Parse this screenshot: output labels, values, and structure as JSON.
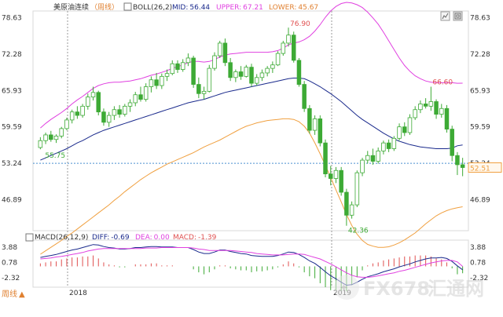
{
  "chart_data": {
    "type": "candlestick",
    "instrument": "美原油连续",
    "period_tag": "周线",
    "indicator": {
      "name": "BOLL(26,2)",
      "mid_label": "MID:",
      "mid_value": "56.44",
      "upper_label": "UPPER:",
      "upper_value": "67.21",
      "lower_label": "LOWER:",
      "lower_value": "45.67"
    },
    "price_axis": {
      "ticks": [
        "78.63",
        "72.28",
        "65.93",
        "59.59",
        "53.24",
        "46.89"
      ],
      "ylim": [
        41.5,
        79.8
      ]
    },
    "current_price": "52.51",
    "annotations": {
      "high": "76.90",
      "low": "42.36",
      "left_low": "55.75",
      "right_high": "66.60"
    },
    "x_labels": [
      "2018",
      "2019"
    ],
    "candles": [
      [
        56.0,
        57.8,
        55.7,
        57.2
      ],
      [
        57.2,
        58.6,
        56.6,
        58.2
      ],
      [
        58.2,
        58.9,
        57.0,
        57.4
      ],
      [
        57.4,
        58.3,
        56.8,
        58.0
      ],
      [
        58.0,
        59.6,
        57.6,
        59.3
      ],
      [
        59.3,
        61.2,
        59.0,
        60.8
      ],
      [
        60.8,
        62.6,
        60.2,
        62.2
      ],
      [
        62.2,
        63.2,
        61.0,
        61.6
      ],
      [
        61.6,
        63.6,
        61.2,
        63.2
      ],
      [
        63.2,
        65.4,
        62.6,
        64.8
      ],
      [
        64.8,
        66.6,
        64.2,
        65.6
      ],
      [
        65.6,
        65.9,
        61.6,
        62.2
      ],
      [
        62.2,
        62.8,
        59.8,
        60.4
      ],
      [
        60.4,
        62.2,
        59.6,
        61.6
      ],
      [
        61.6,
        63.2,
        60.8,
        62.6
      ],
      [
        62.6,
        63.4,
        61.2,
        61.8
      ],
      [
        61.8,
        63.6,
        61.4,
        63.2
      ],
      [
        63.2,
        64.4,
        62.2,
        63.8
      ],
      [
        63.8,
        65.7,
        63.2,
        65.2
      ],
      [
        65.2,
        66.6,
        64.0,
        64.4
      ],
      [
        64.4,
        67.2,
        64.0,
        66.6
      ],
      [
        66.6,
        68.4,
        65.6,
        67.8
      ],
      [
        67.8,
        69.0,
        66.2,
        66.8
      ],
      [
        66.8,
        68.9,
        66.2,
        68.4
      ],
      [
        68.4,
        69.6,
        67.6,
        68.9
      ],
      [
        68.9,
        71.2,
        68.6,
        70.6
      ],
      [
        70.6,
        71.2,
        69.0,
        69.6
      ],
      [
        69.6,
        71.4,
        69.2,
        70.8
      ],
      [
        70.8,
        72.4,
        70.2,
        71.6
      ],
      [
        71.6,
        72.0,
        66.4,
        67.0
      ],
      [
        67.0,
        68.2,
        64.6,
        65.4
      ],
      [
        65.4,
        66.6,
        64.4,
        65.8
      ],
      [
        65.8,
        70.4,
        65.6,
        69.8
      ],
      [
        69.8,
        72.6,
        69.4,
        72.0
      ],
      [
        72.0,
        74.6,
        71.6,
        74.2
      ],
      [
        74.2,
        75.0,
        70.2,
        70.8
      ],
      [
        70.8,
        71.6,
        67.6,
        68.2
      ],
      [
        68.2,
        69.6,
        67.4,
        69.2
      ],
      [
        69.2,
        70.2,
        67.8,
        68.4
      ],
      [
        68.4,
        70.4,
        68.2,
        70.0
      ],
      [
        70.0,
        70.6,
        66.6,
        67.2
      ],
      [
        67.2,
        68.8,
        66.8,
        68.2
      ],
      [
        68.2,
        69.6,
        67.6,
        69.0
      ],
      [
        69.0,
        70.2,
        68.4,
        69.8
      ],
      [
        69.8,
        71.0,
        69.0,
        70.4
      ],
      [
        70.4,
        72.8,
        70.2,
        72.4
      ],
      [
        72.4,
        74.6,
        72.0,
        74.2
      ],
      [
        74.2,
        76.9,
        73.6,
        75.6
      ],
      [
        75.6,
        76.2,
        70.8,
        71.2
      ],
      [
        71.2,
        71.6,
        66.6,
        67.0
      ],
      [
        67.0,
        67.6,
        62.2,
        62.8
      ],
      [
        62.8,
        63.4,
        58.4,
        59.0
      ],
      [
        59.0,
        61.6,
        58.2,
        61.0
      ],
      [
        61.0,
        61.6,
        56.2,
        56.8
      ],
      [
        56.8,
        57.4,
        50.8,
        51.4
      ],
      [
        51.4,
        52.8,
        49.4,
        50.6
      ],
      [
        50.6,
        52.6,
        49.8,
        52.0
      ],
      [
        52.0,
        52.6,
        47.6,
        48.2
      ],
      [
        48.2,
        48.8,
        42.36,
        44.2
      ],
      [
        44.2,
        46.6,
        43.6,
        46.0
      ],
      [
        46.0,
        52.0,
        45.6,
        51.6
      ],
      [
        51.6,
        54.2,
        51.0,
        53.8
      ],
      [
        53.8,
        55.4,
        53.2,
        54.6
      ],
      [
        54.6,
        55.8,
        53.0,
        53.6
      ],
      [
        53.6,
        56.0,
        53.2,
        55.4
      ],
      [
        55.4,
        57.2,
        54.8,
        56.8
      ],
      [
        56.8,
        57.4,
        55.2,
        55.8
      ],
      [
        55.8,
        58.0,
        55.4,
        57.6
      ],
      [
        57.6,
        60.2,
        57.2,
        59.6
      ],
      [
        59.6,
        60.4,
        58.0,
        58.6
      ],
      [
        58.6,
        61.8,
        58.2,
        61.2
      ],
      [
        61.2,
        63.2,
        60.8,
        62.6
      ],
      [
        62.6,
        64.2,
        62.0,
        63.6
      ],
      [
        63.6,
        64.6,
        62.8,
        63.2
      ],
      [
        63.2,
        66.6,
        62.4,
        64.0
      ],
      [
        64.0,
        64.4,
        61.0,
        61.8
      ],
      [
        61.8,
        63.6,
        61.2,
        62.8
      ],
      [
        62.8,
        63.4,
        58.6,
        59.2
      ],
      [
        59.2,
        59.8,
        53.6,
        54.6
      ],
      [
        54.6,
        55.2,
        51.2,
        53.0
      ],
      [
        53.0,
        54.2,
        51.0,
        52.51
      ]
    ],
    "boll_upper": [
      59.4,
      60.2,
      60.9,
      61.5,
      62.1,
      62.8,
      63.6,
      64.3,
      64.9,
      65.6,
      66.3,
      66.8,
      67.1,
      67.3,
      67.4,
      67.4,
      67.5,
      67.6,
      67.8,
      68.0,
      68.3,
      68.6,
      68.8,
      69.1,
      69.4,
      69.8,
      70.1,
      70.4,
      70.8,
      71.0,
      71.0,
      70.9,
      71.0,
      71.3,
      71.8,
      72.1,
      72.3,
      72.4,
      72.5,
      72.6,
      72.6,
      72.6,
      72.6,
      72.6,
      72.7,
      72.9,
      73.3,
      73.9,
      74.2,
      74.4,
      74.8,
      75.4,
      76.3,
      77.4,
      78.7,
      79.8,
      80.6,
      81.1,
      81.3,
      81.2,
      80.9,
      80.4,
      79.6,
      78.6,
      77.5,
      76.1,
      74.6,
      73.1,
      71.6,
      70.3,
      69.3,
      68.5,
      68.0,
      67.6,
      67.4,
      67.3,
      67.3,
      67.3,
      67.3,
      67.2,
      67.21
    ],
    "boll_mid": [
      53.8,
      54.2,
      54.6,
      55.0,
      55.4,
      55.8,
      56.3,
      56.8,
      57.2,
      57.7,
      58.2,
      58.6,
      59.0,
      59.3,
      59.6,
      59.9,
      60.2,
      60.5,
      60.8,
      61.1,
      61.4,
      61.7,
      62.0,
      62.3,
      62.6,
      62.9,
      63.2,
      63.5,
      63.8,
      64.0,
      64.2,
      64.4,
      64.7,
      65.0,
      65.3,
      65.6,
      65.8,
      66.0,
      66.2,
      66.4,
      66.6,
      66.8,
      67.0,
      67.2,
      67.4,
      67.6,
      67.8,
      68.0,
      68.1,
      68.1,
      68.0,
      67.6,
      67.1,
      66.6,
      66.0,
      65.4,
      64.7,
      64.0,
      63.2,
      62.4,
      61.6,
      60.9,
      60.3,
      59.7,
      59.1,
      58.5,
      58.0,
      57.5,
      57.1,
      56.8,
      56.5,
      56.3,
      56.1,
      56.0,
      55.9,
      55.8,
      55.8,
      55.8,
      55.9,
      56.3,
      56.44
    ],
    "boll_lower": [
      37.4,
      38.0,
      38.6,
      39.2,
      39.8,
      40.5,
      41.1,
      41.8,
      42.5,
      43.2,
      43.9,
      44.6,
      45.3,
      46.0,
      46.8,
      47.5,
      48.3,
      49.0,
      49.7,
      50.4,
      51.0,
      51.6,
      52.1,
      52.6,
      53.1,
      53.5,
      53.9,
      54.3,
      54.7,
      55.1,
      55.6,
      56.1,
      56.5,
      56.9,
      57.3,
      57.8,
      58.3,
      58.8,
      59.3,
      59.7,
      60.0,
      60.3,
      60.5,
      60.7,
      60.8,
      60.9,
      61.0,
      61.0,
      60.9,
      60.5,
      59.7,
      58.5,
      56.8,
      54.9,
      52.9,
      50.8,
      48.6,
      46.5,
      44.3,
      42.4,
      40.9,
      39.8,
      39.1,
      38.8,
      38.6,
      38.6,
      38.7,
      39.0,
      39.4,
      39.9,
      40.5,
      41.1,
      41.9,
      42.7,
      43.4,
      44.1,
      44.6,
      45.0,
      45.3,
      45.5,
      45.67
    ],
    "macd": {
      "params": "MACD(26,12,9)",
      "diff_label": "DIFF:",
      "diff_value": "-0.69",
      "dea_label": "DEA:",
      "dea_value": "0.00",
      "macd_label": "MACD:",
      "macd_value": "-1.39",
      "ticks": [
        "3.88",
        "0.78",
        "-2.32"
      ],
      "ylim": [
        -4.2,
        5.3
      ],
      "diff": [
        1.8,
        2.0,
        2.2,
        2.4,
        2.7,
        3.0,
        3.3,
        3.5,
        3.8,
        4.1,
        4.4,
        4.3,
        4.0,
        3.8,
        3.7,
        3.5,
        3.5,
        3.6,
        3.8,
        3.8,
        3.9,
        4.0,
        4.0,
        3.9,
        3.9,
        3.9,
        3.8,
        3.8,
        3.8,
        3.4,
        2.9,
        2.6,
        2.6,
        2.9,
        3.3,
        3.3,
        3.0,
        2.8,
        2.6,
        2.5,
        2.2,
        2.1,
        2.0,
        2.0,
        2.0,
        2.2,
        2.5,
        2.9,
        2.8,
        2.4,
        1.8,
        1.1,
        0.6,
        -0.2,
        -1.1,
        -1.9,
        -2.5,
        -3.2,
        -3.8,
        -3.7,
        -3.2,
        -2.6,
        -2.1,
        -1.8,
        -1.5,
        -1.1,
        -0.8,
        -0.5,
        -0.1,
        0.2,
        0.5,
        0.9,
        1.2,
        1.5,
        1.7,
        1.7,
        1.8,
        1.6,
        1.0,
        0.1,
        -0.69
      ],
      "dea": [
        1.5,
        1.6,
        1.7,
        1.9,
        2.0,
        2.2,
        2.4,
        2.6,
        2.8,
        3.1,
        3.3,
        3.5,
        3.6,
        3.6,
        3.6,
        3.6,
        3.6,
        3.6,
        3.6,
        3.6,
        3.7,
        3.7,
        3.7,
        3.8,
        3.8,
        3.8,
        3.8,
        3.8,
        3.8,
        3.7,
        3.5,
        3.4,
        3.2,
        3.2,
        3.2,
        3.2,
        3.2,
        3.1,
        3.0,
        2.9,
        2.8,
        2.6,
        2.5,
        2.4,
        2.3,
        2.3,
        2.3,
        2.4,
        2.5,
        2.5,
        2.4,
        2.1,
        1.8,
        1.5,
        1.0,
        0.5,
        -0.1,
        -0.7,
        -1.3,
        -1.8,
        -2.1,
        -2.2,
        -2.2,
        -2.1,
        -1.9,
        -1.7,
        -1.5,
        -1.3,
        -1.0,
        -0.8,
        -0.5,
        -0.2,
        0.1,
        0.4,
        0.7,
        0.9,
        1.1,
        1.2,
        1.2,
        0.9,
        0.0
      ],
      "hist": [
        0.6,
        0.8,
        1.0,
        1.0,
        1.4,
        1.6,
        1.8,
        1.8,
        2.0,
        2.0,
        2.2,
        1.6,
        0.8,
        0.4,
        0.2,
        -0.2,
        -0.2,
        0.0,
        0.4,
        0.4,
        0.4,
        0.6,
        0.6,
        0.2,
        0.2,
        0.2,
        0.0,
        0.0,
        0.0,
        -0.6,
        -1.2,
        -1.6,
        -1.2,
        -0.6,
        0.2,
        0.2,
        -0.4,
        -0.6,
        -0.8,
        -0.8,
        -1.2,
        -1.0,
        -1.0,
        -0.8,
        -0.6,
        -0.2,
        0.4,
        1.0,
        0.6,
        -0.2,
        -1.2,
        -2.0,
        -2.4,
        -3.4,
        -4.2,
        -4.8,
        -4.8,
        -5.0,
        -5.0,
        -3.8,
        -2.2,
        -0.8,
        0.2,
        0.6,
        0.8,
        1.2,
        1.4,
        1.6,
        1.8,
        2.0,
        2.0,
        2.2,
        2.2,
        2.2,
        2.0,
        1.6,
        1.4,
        0.8,
        -0.4,
        -1.6,
        -1.39
      ]
    },
    "colors": {
      "up": "#f4f4f4",
      "up_edge": "#3daa35",
      "down": "#3daa35",
      "up_fill": "#ffffff",
      "upper": "#e040e0",
      "mid": "#1a2a8c",
      "lower": "#f0a040",
      "diff": "#1a2a8c",
      "dea": "#e040e0",
      "hist_pos": "#e05050",
      "hist_neg": "#3daa35",
      "axis_text": "#333333",
      "current": "#4a90d0",
      "current_box": "#f0a040"
    }
  },
  "watermark": {
    "text": "FX678",
    "cn": "汇通网"
  }
}
